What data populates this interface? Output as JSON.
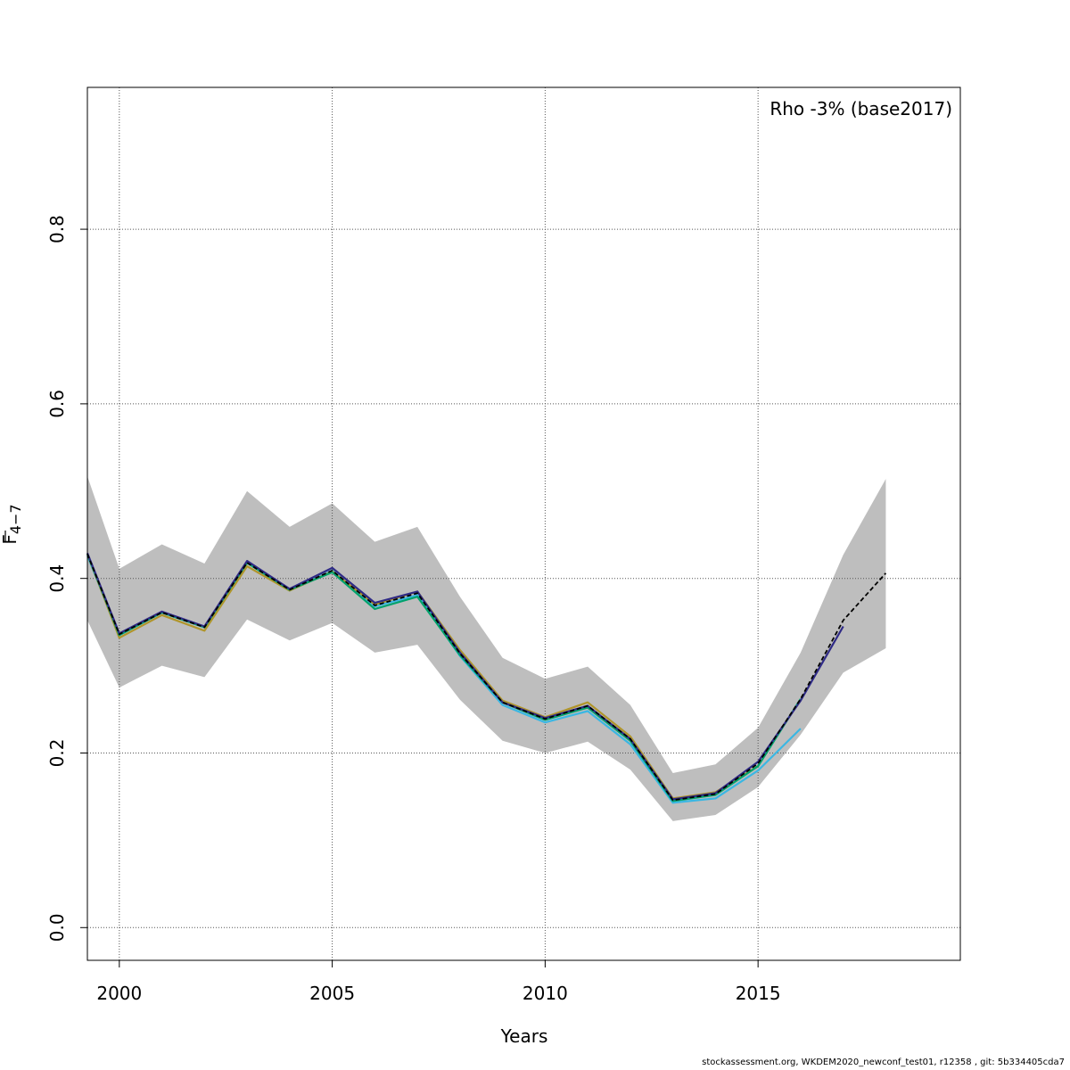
{
  "chart_data": {
    "type": "line",
    "title": "",
    "annotation": "Rho -3% (base2017)",
    "xlabel": "Years",
    "ylabel": "F",
    "ylabel_sub": "4−7",
    "xlim": [
      1999.25,
      2019.75
    ],
    "ylim": [
      -0.0375,
      0.9625
    ],
    "x_ticks": [
      2000,
      2005,
      2010,
      2015
    ],
    "y_ticks": [
      0.0,
      0.2,
      0.4,
      0.6,
      0.8
    ],
    "x_tick_labels": [
      "2000",
      "2005",
      "2010",
      "2015"
    ],
    "y_tick_labels": [
      "0.0",
      "0.2",
      "0.4",
      "0.6",
      "0.8"
    ],
    "grid": true,
    "confidence_band": {
      "color": "#bebebe",
      "x": [
        1999.25,
        2000,
        2001,
        2002,
        2003,
        2004,
        2005,
        2006,
        2007,
        2008,
        2009,
        2010,
        2011,
        2012,
        2013,
        2014,
        2015,
        2016,
        2017,
        2018
      ],
      "lower": [
        0.352,
        0.275,
        0.3,
        0.287,
        0.353,
        0.329,
        0.349,
        0.315,
        0.324,
        0.261,
        0.214,
        0.2,
        0.213,
        0.181,
        0.122,
        0.129,
        0.161,
        0.221,
        0.292,
        0.32
      ],
      "upper": [
        0.517,
        0.411,
        0.439,
        0.417,
        0.5,
        0.459,
        0.486,
        0.442,
        0.459,
        0.379,
        0.309,
        0.285,
        0.299,
        0.255,
        0.177,
        0.187,
        0.229,
        0.315,
        0.427,
        0.514
      ]
    },
    "series": [
      {
        "color": "#3ab7e3",
        "dashed": false,
        "x": [
          1999.25,
          2000,
          2001,
          2002,
          2003,
          2004,
          2005,
          2006,
          2007,
          2008,
          2009,
          2010,
          2011,
          2012,
          2013,
          2014,
          2015,
          2016
        ],
        "values": [
          0.426,
          0.335,
          0.361,
          0.344,
          0.418,
          0.386,
          0.409,
          0.368,
          0.381,
          0.311,
          0.255,
          0.235,
          0.248,
          0.21,
          0.143,
          0.148,
          0.18,
          0.228
        ]
      },
      {
        "color": "#b0952a",
        "dashed": false,
        "x": [
          1999.25,
          2000,
          2001,
          2002,
          2003,
          2004,
          2005,
          2006,
          2007,
          2008,
          2009,
          2010,
          2011,
          2012,
          2013,
          2014,
          2015
        ],
        "values": [
          0.428,
          0.332,
          0.358,
          0.34,
          0.414,
          0.386,
          0.408,
          0.37,
          0.385,
          0.318,
          0.26,
          0.241,
          0.258,
          0.219,
          0.148,
          0.155,
          0.185
        ]
      },
      {
        "color": "#00a26c",
        "dashed": false,
        "x": [
          1999.25,
          2000,
          2001,
          2002,
          2003,
          2004,
          2005,
          2006,
          2007,
          2008,
          2009,
          2010,
          2011,
          2012,
          2013,
          2014,
          2015,
          2016
        ],
        "values": [
          0.428,
          0.335,
          0.361,
          0.344,
          0.418,
          0.387,
          0.407,
          0.365,
          0.379,
          0.312,
          0.258,
          0.238,
          0.252,
          0.214,
          0.145,
          0.152,
          0.185,
          0.262
        ]
      },
      {
        "color": "#2f2a86",
        "dashed": false,
        "x": [
          1999.25,
          2000,
          2001,
          2002,
          2003,
          2004,
          2005,
          2006,
          2007,
          2008,
          2009,
          2010,
          2011,
          2012,
          2013,
          2014,
          2015,
          2016,
          2017
        ],
        "values": [
          0.429,
          0.337,
          0.362,
          0.345,
          0.42,
          0.388,
          0.412,
          0.372,
          0.385,
          0.315,
          0.258,
          0.24,
          0.254,
          0.216,
          0.147,
          0.154,
          0.19,
          0.26,
          0.345
        ]
      },
      {
        "color": "#000000",
        "dashed": true,
        "x": [
          1999.25,
          2000,
          2001,
          2002,
          2003,
          2004,
          2005,
          2006,
          2007,
          2008,
          2009,
          2010,
          2011,
          2012,
          2013,
          2014,
          2015,
          2016,
          2017,
          2018
        ],
        "values": [
          0.428,
          0.336,
          0.361,
          0.344,
          0.418,
          0.387,
          0.409,
          0.369,
          0.383,
          0.314,
          0.258,
          0.239,
          0.254,
          0.216,
          0.146,
          0.153,
          0.188,
          0.262,
          0.352,
          0.406
        ]
      }
    ]
  },
  "footer": "stockassessment.org, WKDEM2020_newconf_test01, r12358 , git: 5b334405cda7"
}
